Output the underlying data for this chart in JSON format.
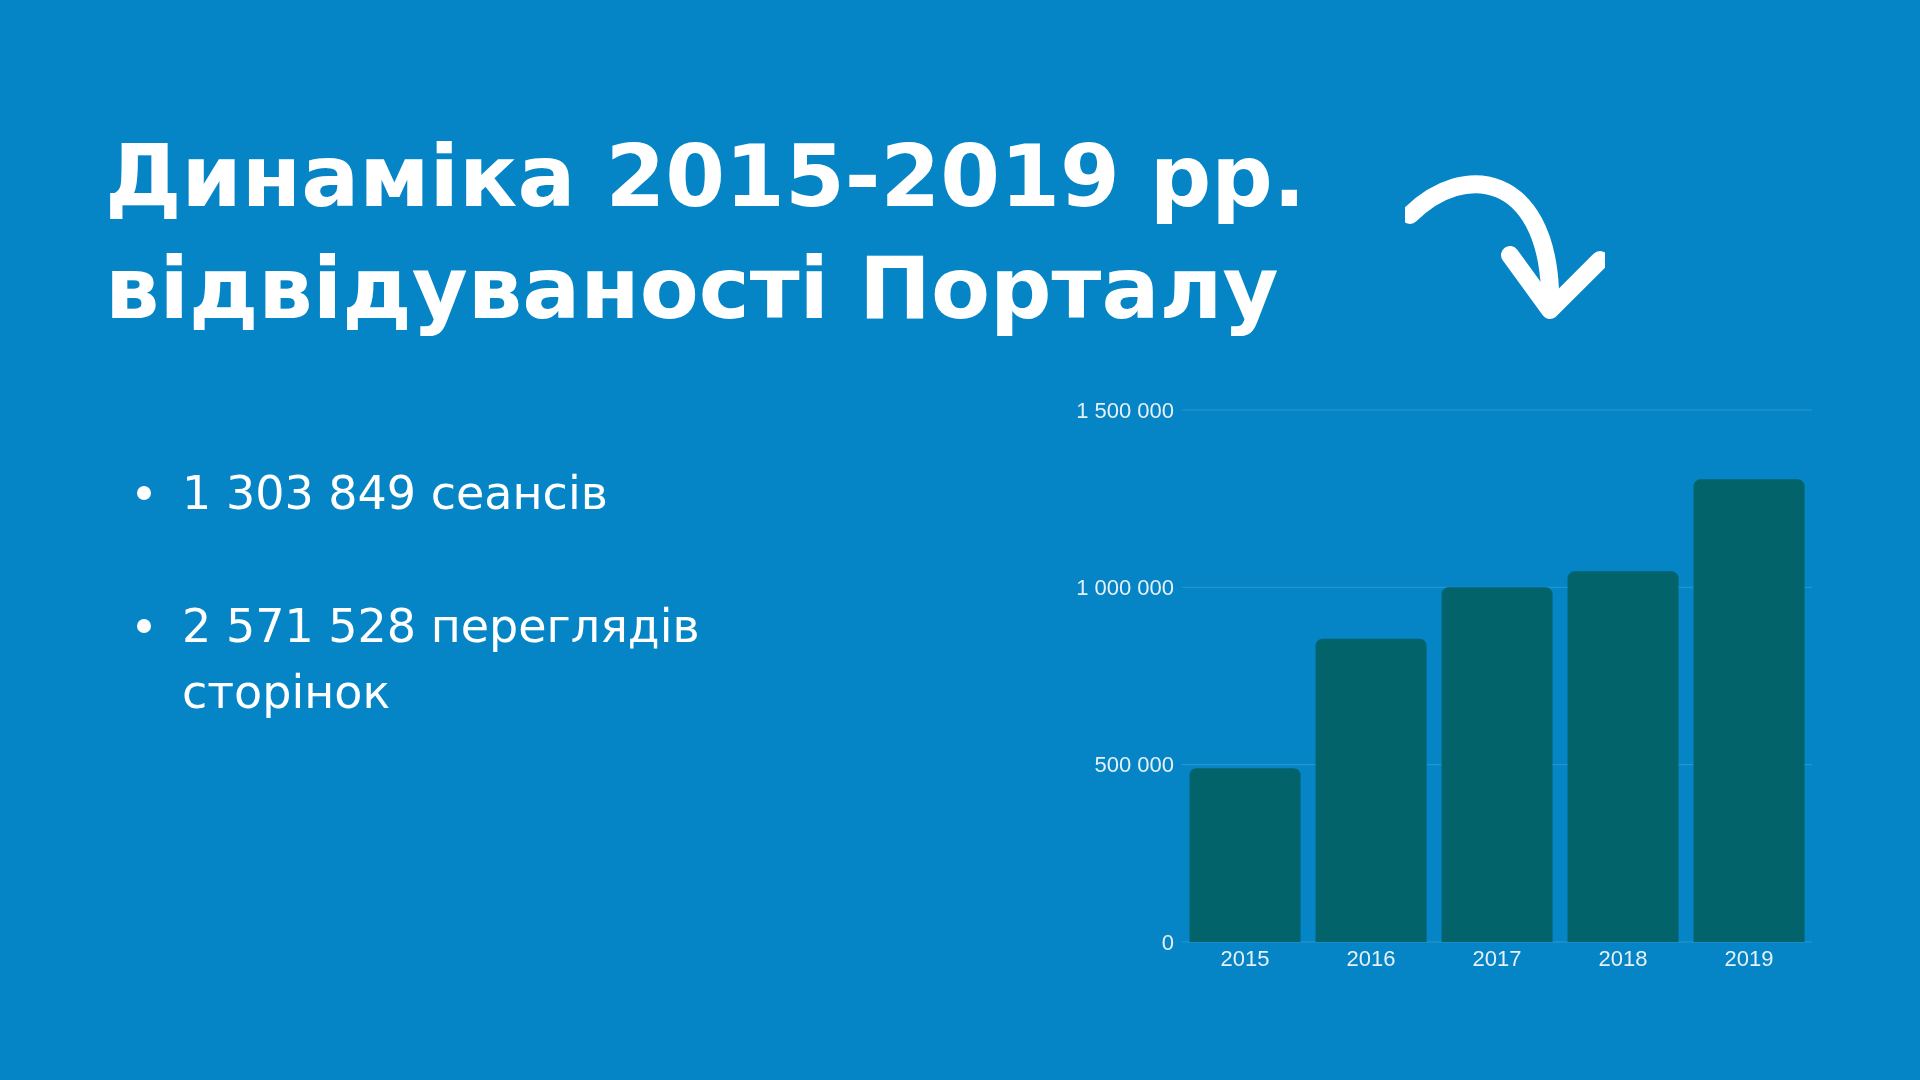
{
  "chart_data": {
    "type": "bar",
    "title": "Динаміка 2015-2019 рр.\nвідвідуваності Порталу",
    "annotations": [
      "1 303 849 сеансів",
      "2 571 528 переглядів сторінок"
    ],
    "categories": [
      "2015",
      "2016",
      "2017",
      "2018",
      "2019"
    ],
    "values": [
      490000,
      855000,
      1000000,
      1045000,
      1305000
    ],
    "color": "#02636a",
    "ylim": [
      0,
      1500000
    ],
    "yticks": [
      {
        "value": 0,
        "label": "0"
      },
      {
        "value": 500000,
        "label": "500 000"
      },
      {
        "value": 1000000,
        "label": "1 000 000"
      },
      {
        "value": 1500000,
        "label": "1 500 000"
      }
    ],
    "grid": "y"
  }
}
